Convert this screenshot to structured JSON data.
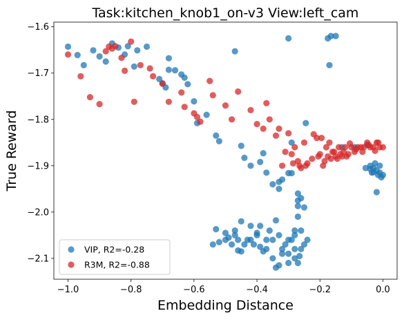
{
  "chart_data": {
    "type": "scatter",
    "title": "Task:kitchen_knob1_on-v3 View:left_cam",
    "xlabel": "Embedding Distance",
    "ylabel": "True Reward",
    "xlim": [
      -1.045,
      0.045
    ],
    "ylim": [
      -2.145,
      -1.59
    ],
    "x_ticks": [
      -1.0,
      -0.8,
      -0.6,
      -0.4,
      -0.2,
      0.0
    ],
    "x_tick_labels": [
      "−1.0",
      "−0.8",
      "−0.6",
      "−0.4",
      "−0.2",
      "0.0"
    ],
    "y_ticks": [
      -1.6,
      -1.7,
      -1.8,
      -1.9,
      -2.0,
      -2.1
    ],
    "y_tick_labels": [
      "−1.6",
      "−1.7",
      "−1.8",
      "−1.9",
      "−2.0",
      "−2.1"
    ],
    "grid": false,
    "legend_position": "lower-left",
    "series": [
      {
        "name": "VIP, R2=-0.28",
        "color": "#1f77b4",
        "points": [
          [
            -1.0,
            -1.643
          ],
          [
            -0.97,
            -1.661
          ],
          [
            -0.95,
            -1.683
          ],
          [
            -0.92,
            -1.651
          ],
          [
            -0.9,
            -1.664
          ],
          [
            -0.88,
            -1.675
          ],
          [
            -0.86,
            -1.636
          ],
          [
            -0.84,
            -1.645
          ],
          [
            -0.82,
            -1.66
          ],
          [
            -0.81,
            -1.642
          ],
          [
            -0.79,
            -1.686
          ],
          [
            -0.78,
            -1.651
          ],
          [
            -0.75,
            -1.643
          ],
          [
            -0.71,
            -1.713
          ],
          [
            -0.7,
            -1.722
          ],
          [
            -0.69,
            -1.731
          ],
          [
            -0.68,
            -1.668
          ],
          [
            -0.68,
            -1.693
          ],
          [
            -0.66,
            -1.694
          ],
          [
            -0.64,
            -1.703
          ],
          [
            -0.63,
            -1.71
          ],
          [
            -0.62,
            -1.724
          ],
          [
            -0.6,
            -1.761
          ],
          [
            -0.59,
            -1.808
          ],
          [
            -0.56,
            -1.79
          ],
          [
            -0.53,
            -1.835
          ],
          [
            -0.52,
            -1.847
          ],
          [
            -0.47,
            -1.653
          ],
          [
            -0.45,
            -1.857
          ],
          [
            -0.44,
            -1.883
          ],
          [
            -0.42,
            -1.9
          ],
          [
            -0.39,
            -1.892
          ],
          [
            -0.38,
            -1.873
          ],
          [
            -0.37,
            -1.915
          ],
          [
            -0.35,
            -1.94
          ],
          [
            -0.33,
            -1.935
          ],
          [
            -0.33,
            -1.95
          ],
          [
            -0.32,
            -1.93
          ],
          [
            -0.3,
            -1.916
          ],
          [
            -0.29,
            -1.916
          ],
          [
            -0.3,
            -1.625
          ],
          [
            -0.29,
            -1.85
          ],
          [
            -0.27,
            -1.96
          ],
          [
            -0.27,
            -1.975
          ],
          [
            -0.26,
            -1.97
          ],
          [
            -0.27,
            -1.987
          ],
          [
            -0.25,
            -1.99
          ],
          [
            -0.245,
            -1.808
          ],
          [
            -0.15,
            -1.62
          ],
          [
            -0.165,
            -1.62
          ],
          [
            -0.17,
            -1.683
          ],
          [
            -0.175,
            -1.625
          ],
          [
            -0.13,
            -1.86
          ],
          [
            -0.09,
            -1.86
          ],
          [
            -0.05,
            -1.855
          ],
          [
            -0.04,
            -1.9
          ],
          [
            -0.03,
            -1.905
          ],
          [
            -0.02,
            -1.91
          ],
          [
            -0.015,
            -1.92
          ],
          [
            -0.01,
            -1.9
          ],
          [
            -0.01,
            -1.915
          ],
          [
            0.0,
            -1.92
          ],
          [
            -0.02,
            -1.957
          ],
          [
            -0.03,
            -1.914
          ],
          [
            -0.04,
            -1.907
          ],
          [
            -0.055,
            -1.905
          ],
          [
            -0.035,
            -1.915
          ],
          [
            -0.025,
            -1.895
          ],
          [
            -0.005,
            -1.925
          ],
          [
            -0.45,
            -2.02
          ],
          [
            -0.42,
            -2.03
          ],
          [
            -0.39,
            -2.03
          ],
          [
            -0.37,
            -2.06
          ],
          [
            -0.36,
            -2.04
          ],
          [
            -0.34,
            -2.018
          ],
          [
            -0.33,
            -2.05
          ],
          [
            -0.31,
            -2.07
          ],
          [
            -0.3,
            -2.09
          ],
          [
            -0.29,
            -2.06
          ],
          [
            -0.28,
            -2.05
          ],
          [
            -0.27,
            -2.01
          ],
          [
            -0.26,
            -2.04
          ],
          [
            -0.26,
            -2.08
          ],
          [
            -0.25,
            -2.07
          ],
          [
            -0.24,
            -2.06
          ],
          [
            -0.4,
            -2.05
          ],
          [
            -0.41,
            -2.07
          ],
          [
            -0.43,
            -2.06
          ],
          [
            -0.44,
            -2.07
          ],
          [
            -0.46,
            -2.06
          ],
          [
            -0.47,
            -2.05
          ],
          [
            -0.48,
            -2.07
          ],
          [
            -0.5,
            -2.06
          ],
          [
            -0.52,
            -2.065
          ],
          [
            -0.53,
            -2.037
          ],
          [
            -0.54,
            -2.07
          ],
          [
            -0.46,
            -2.083
          ],
          [
            -0.45,
            -2.085
          ],
          [
            -0.38,
            -2.085
          ],
          [
            -0.35,
            -2.1
          ],
          [
            -0.34,
            -2.12
          ],
          [
            -0.33,
            -2.115
          ],
          [
            -0.32,
            -2.09
          ],
          [
            -0.3,
            -2.11
          ],
          [
            -0.28,
            -2.1
          ],
          [
            -0.27,
            -2.11
          ],
          [
            -0.265,
            -2.095
          ],
          [
            -0.28,
            -2.08
          ],
          [
            -0.3,
            -2.06
          ],
          [
            -0.35,
            -2.06
          ],
          [
            -0.37,
            -2.08
          ],
          [
            -0.39,
            -2.075
          ],
          [
            -0.4,
            -2.045
          ],
          [
            -0.42,
            -2.06
          ],
          [
            -0.5,
            -2.045
          ],
          [
            -0.49,
            -2.055
          ],
          [
            -0.47,
            -2.04
          ],
          [
            -0.32,
            -2.08
          ],
          [
            -0.28,
            -2.04
          ]
        ]
      },
      {
        "name": "R3M, R2=-0.88",
        "color": "#d62728",
        "points": [
          [
            -1.0,
            -1.66
          ],
          [
            -0.96,
            -1.707
          ],
          [
            -0.93,
            -1.752
          ],
          [
            -0.9,
            -1.767
          ],
          [
            -0.88,
            -1.653
          ],
          [
            -0.87,
            -1.643
          ],
          [
            -0.86,
            -1.647
          ],
          [
            -0.85,
            -1.642
          ],
          [
            -0.83,
            -1.667
          ],
          [
            -0.82,
            -1.695
          ],
          [
            -0.8,
            -1.632
          ],
          [
            -0.79,
            -1.762
          ],
          [
            -0.77,
            -1.683
          ],
          [
            -0.74,
            -1.69
          ],
          [
            -0.73,
            -1.707
          ],
          [
            -0.7,
            -1.723
          ],
          [
            -0.68,
            -1.762
          ],
          [
            -0.64,
            -1.742
          ],
          [
            -0.63,
            -1.773
          ],
          [
            -0.6,
            -1.787
          ],
          [
            -0.59,
            -1.795
          ],
          [
            -0.58,
            -1.805
          ],
          [
            -0.55,
            -1.717
          ],
          [
            -0.54,
            -1.748
          ],
          [
            -0.5,
            -1.77
          ],
          [
            -0.48,
            -1.8
          ],
          [
            -0.46,
            -1.74
          ],
          [
            -0.42,
            -1.78
          ],
          [
            -0.4,
            -1.81
          ],
          [
            -0.38,
            -1.82
          ],
          [
            -0.37,
            -1.765
          ],
          [
            -0.36,
            -1.8
          ],
          [
            -0.34,
            -1.835
          ],
          [
            -0.33,
            -1.82
          ],
          [
            -0.32,
            -1.9
          ],
          [
            -0.31,
            -1.87
          ],
          [
            -0.3,
            -1.83
          ],
          [
            -0.28,
            -1.86
          ],
          [
            -0.27,
            -1.89
          ],
          [
            -0.26,
            -1.905
          ],
          [
            -0.25,
            -1.85
          ],
          [
            -0.24,
            -1.895
          ],
          [
            -0.22,
            -1.832
          ],
          [
            -0.21,
            -1.84
          ],
          [
            -0.2,
            -1.875
          ],
          [
            -0.19,
            -1.9
          ],
          [
            -0.18,
            -1.86
          ],
          [
            -0.17,
            -1.85
          ],
          [
            -0.16,
            -1.87
          ],
          [
            -0.15,
            -1.88
          ],
          [
            -0.14,
            -1.86
          ],
          [
            -0.13,
            -1.88
          ],
          [
            -0.12,
            -1.86
          ],
          [
            -0.11,
            -1.875
          ],
          [
            -0.1,
            -1.86
          ],
          [
            -0.09,
            -1.87
          ],
          [
            -0.08,
            -1.86
          ],
          [
            -0.07,
            -1.86
          ],
          [
            -0.06,
            -1.86
          ],
          [
            -0.05,
            -1.85
          ],
          [
            -0.04,
            -1.86
          ],
          [
            -0.03,
            -1.86
          ],
          [
            -0.02,
            -1.85
          ],
          [
            -0.01,
            -1.86
          ],
          [
            0.0,
            -1.86
          ],
          [
            -0.015,
            -1.85
          ],
          [
            -0.025,
            -1.868
          ],
          [
            -0.045,
            -1.855
          ],
          [
            -0.065,
            -1.87
          ],
          [
            -0.085,
            -1.865
          ],
          [
            -0.105,
            -1.852
          ],
          [
            -0.125,
            -1.87
          ],
          [
            -0.145,
            -1.885
          ],
          [
            -0.165,
            -1.885
          ],
          [
            -0.185,
            -1.89
          ],
          [
            -0.205,
            -1.88
          ],
          [
            -0.225,
            -1.885
          ],
          [
            -0.245,
            -1.9
          ],
          [
            -0.265,
            -1.9
          ],
          [
            -0.285,
            -1.895
          ],
          [
            -0.29,
            -1.875
          ],
          [
            -0.195,
            -1.84
          ],
          [
            -0.175,
            -1.88
          ],
          [
            -0.155,
            -1.87
          ],
          [
            -0.135,
            -1.875
          ],
          [
            -0.115,
            -1.88
          ]
        ]
      }
    ]
  }
}
